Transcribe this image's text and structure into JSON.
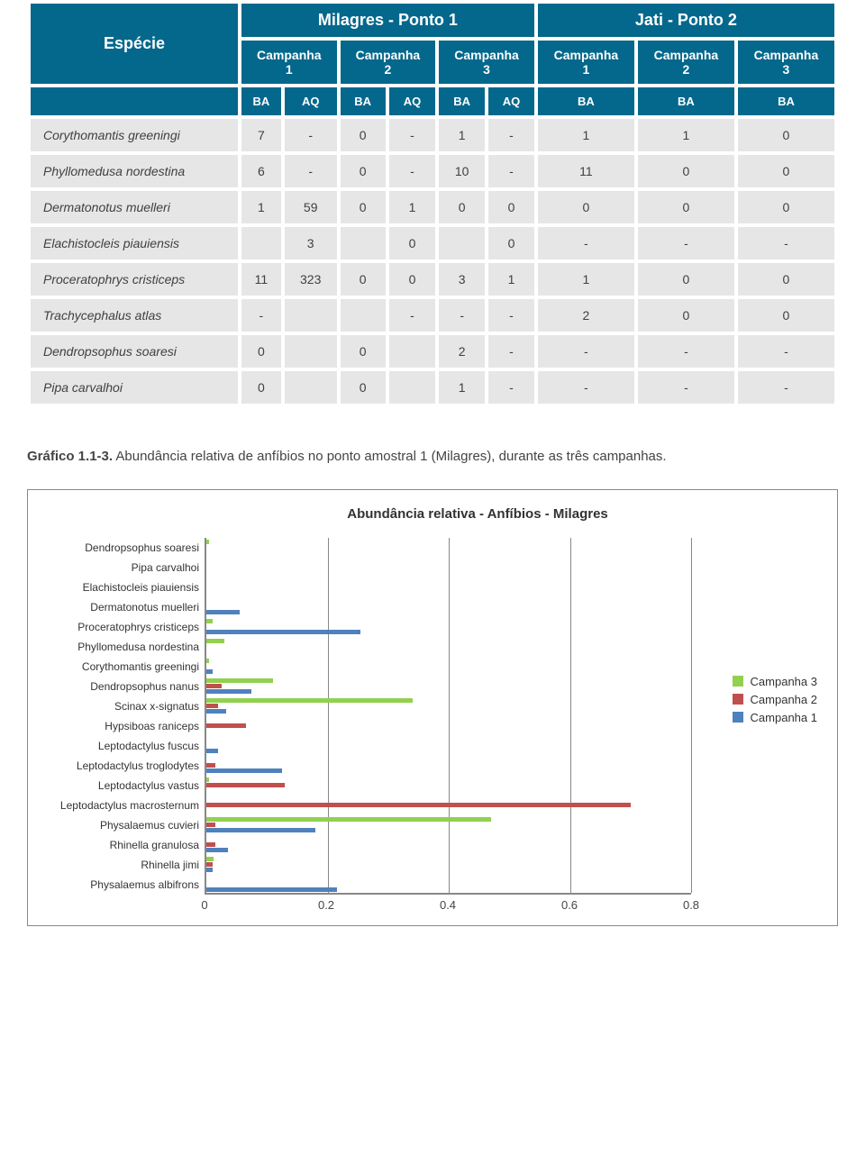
{
  "table": {
    "especie_header": "Espécie",
    "group1": "Milagres - Ponto 1",
    "group2": "Jati - Ponto 2",
    "campanha1": "Campanha\n1",
    "campanha2": "Campanha\n2",
    "campanha3": "Campanha\n3",
    "sub_BA": "BA",
    "sub_AQ": "AQ",
    "rows": [
      {
        "sp": "Corythomantis greeningi",
        "c": [
          "7",
          "-",
          "0",
          "-",
          "1",
          "-",
          "1",
          "1",
          "0"
        ]
      },
      {
        "sp": "Phyllomedusa nordestina",
        "c": [
          "6",
          "-",
          "0",
          "-",
          "10",
          "-",
          "11",
          "0",
          "0"
        ]
      },
      {
        "sp": "Dermatonotus muelleri",
        "c": [
          "1",
          "59",
          "0",
          "1",
          "0",
          "0",
          "0",
          "0",
          "0"
        ]
      },
      {
        "sp": "Elachistocleis piauiensis",
        "c": [
          "",
          "3",
          "",
          "0",
          "",
          "0",
          "-",
          "-",
          "-"
        ]
      },
      {
        "sp": "Proceratophrys cristiceps",
        "c": [
          "11",
          "323",
          "0",
          "0",
          "3",
          "1",
          "1",
          "0",
          "0"
        ]
      },
      {
        "sp": "Trachycephalus atlas",
        "c": [
          "-",
          "",
          "",
          "-",
          "-",
          "-",
          "2",
          "0",
          "0"
        ]
      },
      {
        "sp": "Dendropsophus soaresi",
        "c": [
          "0",
          "",
          "0",
          "",
          "2",
          "-",
          "-",
          "-",
          "-"
        ]
      },
      {
        "sp": "Pipa carvalhoi",
        "c": [
          "0",
          "",
          "0",
          "",
          "1",
          "-",
          "-",
          "-",
          "-"
        ]
      }
    ]
  },
  "caption": {
    "label": "Gráfico 1.1-3.",
    "text": " Abundância relativa de anfíbios no ponto amostral 1  (Milagres), durante as três campanhas."
  },
  "chart": {
    "title": "Abundância relativa - Anfíbios - Milagres",
    "xmin": 0,
    "xmax": 0.8,
    "xtick_step": 0.2,
    "colors": {
      "c3": "#92d050",
      "c2": "#c0504d",
      "c1": "#4f81bd"
    },
    "grid_color": "#888888",
    "legend": [
      {
        "label": "Campanha 3",
        "key": "c3"
      },
      {
        "label": "Campanha 2",
        "key": "c2"
      },
      {
        "label": "Campanha 1",
        "key": "c1"
      }
    ],
    "species": [
      {
        "name": "Dendropsophus soaresi",
        "c3": 0.005,
        "c2": 0,
        "c1": 0
      },
      {
        "name": "Pipa carvalhoi",
        "c3": 0,
        "c2": 0,
        "c1": 0
      },
      {
        "name": "Elachistocleis piauiensis",
        "c3": 0,
        "c2": 0,
        "c1": 0
      },
      {
        "name": "Dermatonotus muelleri",
        "c3": 0,
        "c2": 0,
        "c1": 0.055
      },
      {
        "name": "Proceratophrys cristiceps",
        "c3": 0.01,
        "c2": 0,
        "c1": 0.255
      },
      {
        "name": "Phyllomedusa nordestina",
        "c3": 0.03,
        "c2": 0,
        "c1": 0
      },
      {
        "name": "Corythomantis greeningi",
        "c3": 0.005,
        "c2": 0,
        "c1": 0.01
      },
      {
        "name": "Dendropsophus nanus",
        "c3": 0.11,
        "c2": 0.025,
        "c1": 0.075
      },
      {
        "name": "Scinax x-signatus",
        "c3": 0.34,
        "c2": 0.02,
        "c1": 0.032
      },
      {
        "name": "Hypsiboas raniceps",
        "c3": 0,
        "c2": 0.065,
        "c1": 0
      },
      {
        "name": "Leptodactylus fuscus",
        "c3": 0,
        "c2": 0,
        "c1": 0.02
      },
      {
        "name": "Leptodactylus troglodytes",
        "c3": 0,
        "c2": 0.015,
        "c1": 0.125
      },
      {
        "name": "Leptodactylus vastus",
        "c3": 0.005,
        "c2": 0.13,
        "c1": 0
      },
      {
        "name": "Leptodactylus macrosternum",
        "c3": 0,
        "c2": 0.7,
        "c1": 0
      },
      {
        "name": "Physalaemus cuvieri",
        "c3": 0.47,
        "c2": 0.015,
        "c1": 0.18
      },
      {
        "name": "Rhinella granulosa",
        "c3": 0,
        "c2": 0.015,
        "c1": 0.035
      },
      {
        "name": "Rhinella jimi",
        "c3": 0.012,
        "c2": 0.01,
        "c1": 0.01
      },
      {
        "name": "Physalaemus albifrons",
        "c3": 0,
        "c2": 0,
        "c1": 0.215
      }
    ]
  }
}
